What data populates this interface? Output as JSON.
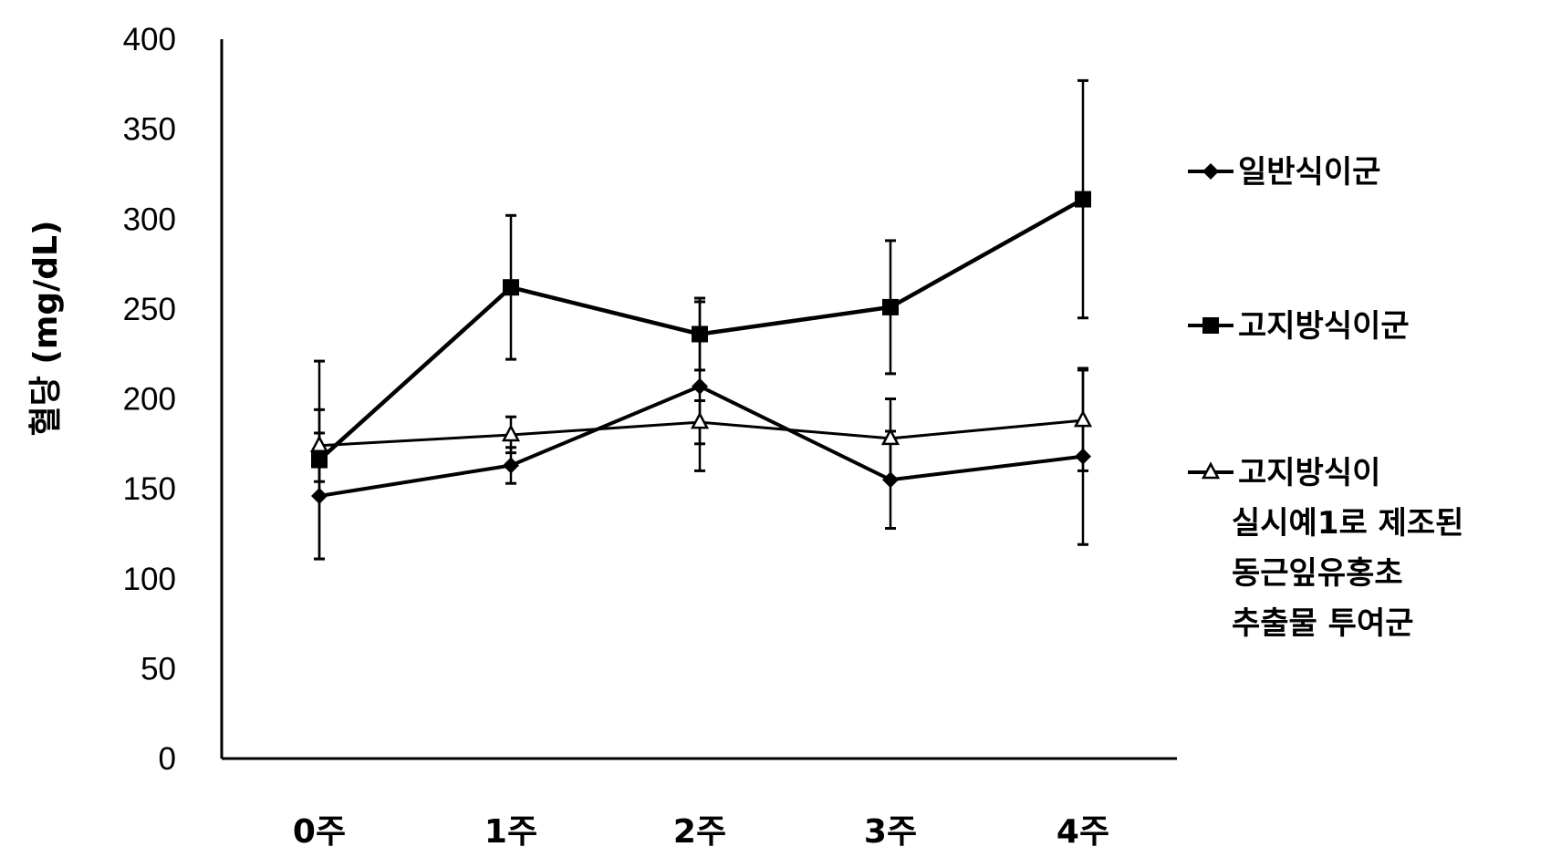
{
  "chart_data": {
    "type": "line",
    "title": "",
    "xlabel": "",
    "ylabel": "혈당 (mg/dL)",
    "categories": [
      "0주",
      "1주",
      "2주",
      "3주",
      "4주"
    ],
    "ylim": [
      0,
      400
    ],
    "yticks": [
      0,
      50,
      100,
      150,
      200,
      250,
      300,
      350,
      400
    ],
    "grid": false,
    "legend_position": "right",
    "series": [
      {
        "name": "일반식이군",
        "marker": "diamond",
        "values": [
          146,
          163,
          207,
          155,
          168
        ],
        "error": [
          35,
          10,
          47,
          27,
          49
        ]
      },
      {
        "name": "고지방식이군",
        "marker": "square",
        "values": [
          166,
          262,
          236,
          251,
          311
        ],
        "error": [
          55,
          40,
          20,
          37,
          66
        ]
      },
      {
        "name": "고지방식이 실시예1로 제조된 동근잎유홍초 추출물 투여군",
        "name_lines": [
          "고지방식이",
          "실시예1로 제조된",
          "동근잎유홍초",
          "추출물 투여군"
        ],
        "marker": "triangle",
        "values": [
          174,
          180,
          187,
          178,
          188
        ],
        "error": [
          20,
          10,
          12,
          22,
          28
        ]
      }
    ]
  }
}
